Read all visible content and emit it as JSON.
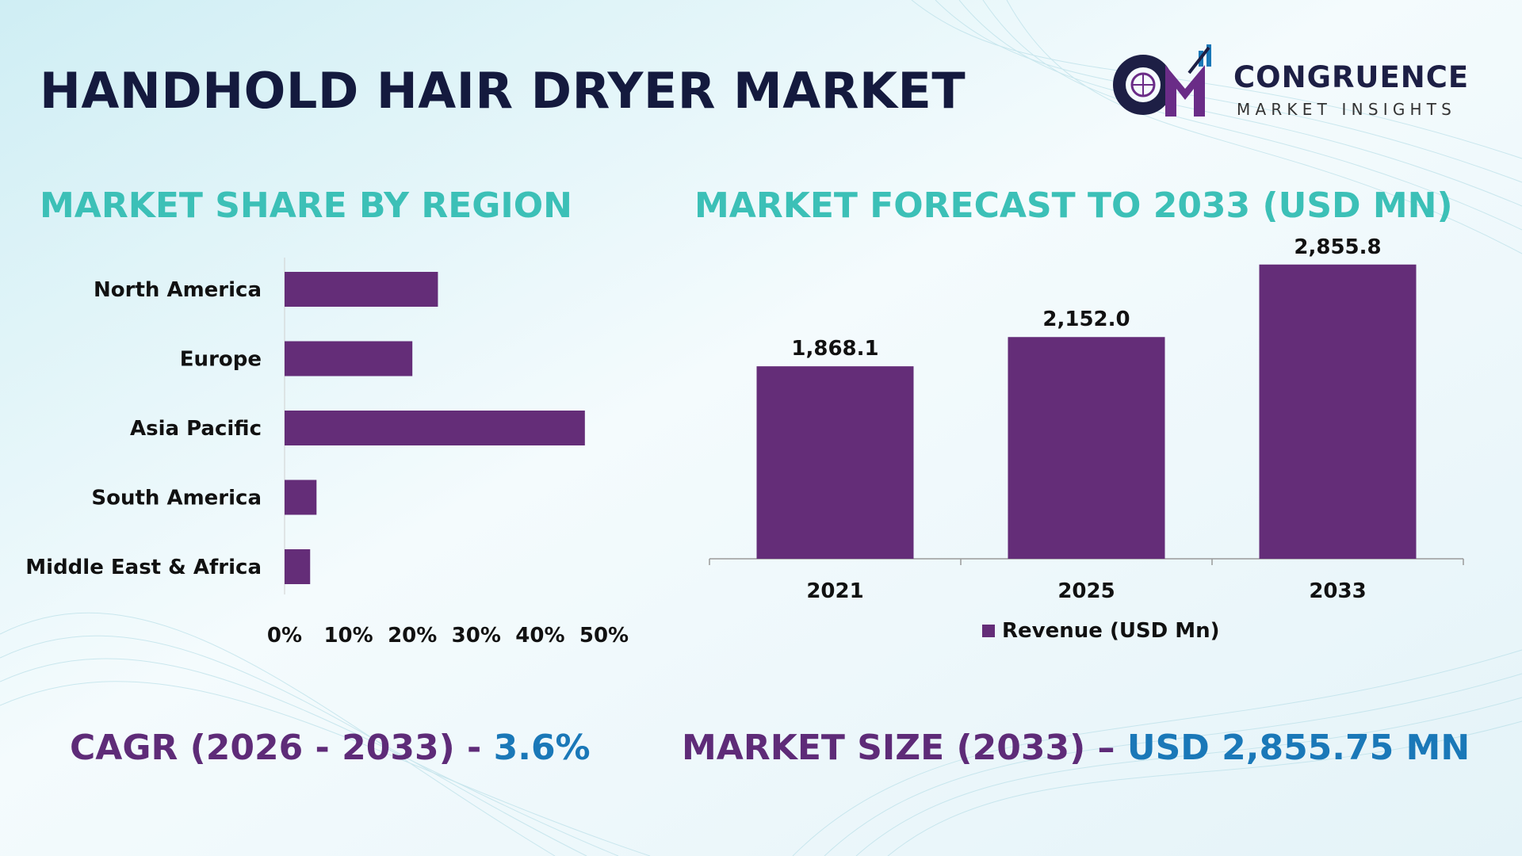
{
  "title": "HANDHOLD HAIR DRYER MARKET",
  "logo": {
    "name": "CONGRUENCE",
    "tagline": "MARKET INSIGHTS",
    "colors": [
      "#1d1f45",
      "#6a2c87",
      "#1a78b8"
    ]
  },
  "colors": {
    "bar": "#642d78",
    "section_title": "#3cc0b7",
    "title": "#141a3e",
    "stat_label": "#5e2b78",
    "stat_value": "#1a78b8"
  },
  "region_chart": {
    "section_title": "MARKET SHARE BY REGION"
  },
  "forecast_chart": {
    "section_title": "MARKET FORECAST TO 2033 (USD MN)"
  },
  "stats": {
    "cagr_label": "CAGR (2026 - 2033) - ",
    "cagr_value": "3.6%",
    "size_label": "MARKET SIZE (2033) – ",
    "size_value": "USD 2,855.75 MN"
  },
  "chart_data": [
    {
      "type": "bar",
      "orientation": "horizontal",
      "categories": [
        "North America",
        "Europe",
        "Asia Pacific",
        "South America",
        "Middle East & Africa"
      ],
      "values": [
        24,
        20,
        47,
        5,
        4
      ],
      "xlim": [
        0,
        50
      ],
      "xticks": [
        "0%",
        "10%",
        "20%",
        "30%",
        "40%",
        "50%"
      ],
      "tick_values": [
        0,
        10,
        20,
        30,
        40,
        50
      ],
      "grid": false
    },
    {
      "type": "bar",
      "categories": [
        "2021",
        "2025",
        "2033"
      ],
      "values": [
        1868.1,
        2152.0,
        2855.8
      ],
      "data_labels": [
        "1,868.1",
        "2,152.0",
        "2,855.8"
      ],
      "ylim": [
        0,
        3000
      ],
      "series": [
        {
          "name": "Revenue (USD Mn)",
          "values": [
            1868.1,
            2152.0,
            2855.8
          ]
        }
      ],
      "legend": "bottom",
      "grid": false
    }
  ]
}
